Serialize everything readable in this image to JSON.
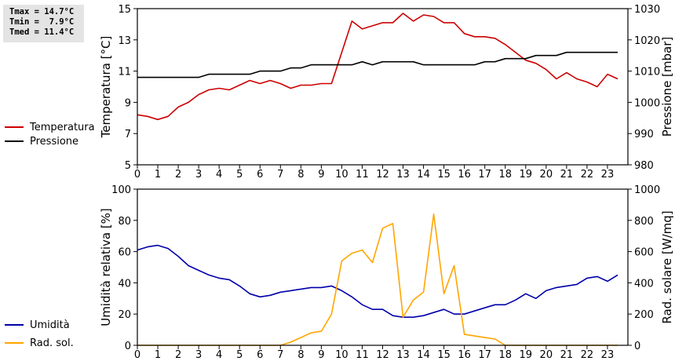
{
  "stats": {
    "tmax": "Tmax = 14.7°C",
    "tmin": "Tmin =  7.9°C",
    "tmed": "Tmed = 11.4°C"
  },
  "colors": {
    "temperature": "#cc0000",
    "pressure": "#000000",
    "humidity": "#0000aa",
    "radiation": "#ffa500"
  },
  "chart_data": [
    {
      "type": "line",
      "title": "",
      "xlabel": "",
      "ylabel": "Temperatura [°C]",
      "ylabel_right": "Pressione [mbar]",
      "xlim": [
        0,
        24
      ],
      "ylim": [
        5,
        15
      ],
      "ylim_right": [
        980,
        1030
      ],
      "xticks": [
        0,
        1,
        2,
        3,
        4,
        5,
        6,
        7,
        8,
        9,
        10,
        11,
        12,
        13,
        14,
        15,
        16,
        17,
        18,
        19,
        20,
        21,
        22,
        23
      ],
      "yticks": [
        5,
        7,
        9,
        11,
        13,
        15
      ],
      "yticks_right": [
        980,
        990,
        1000,
        1010,
        1020,
        1030
      ],
      "legend": "left",
      "series": [
        {
          "name": "Temperatura",
          "axis": "left",
          "color": "#cc0000",
          "x": [
            0,
            0.5,
            1,
            1.5,
            2,
            2.5,
            3,
            3.5,
            4,
            4.5,
            5,
            5.5,
            6,
            6.5,
            7,
            7.5,
            8,
            8.5,
            9,
            9.5,
            10,
            10.5,
            11,
            11.5,
            12,
            12.5,
            13,
            13.5,
            14,
            14.5,
            15,
            15.5,
            16,
            16.5,
            17,
            17.5,
            18,
            18.5,
            19,
            19.5,
            20,
            20.5,
            21,
            21.5,
            22,
            22.5,
            23,
            23.5
          ],
          "y": [
            8.2,
            8.1,
            7.9,
            8.1,
            8.7,
            9.0,
            9.5,
            9.8,
            9.9,
            9.8,
            10.1,
            10.4,
            10.2,
            10.4,
            10.2,
            9.9,
            10.1,
            10.1,
            10.2,
            10.2,
            12.2,
            14.2,
            13.7,
            13.9,
            14.1,
            14.1,
            14.7,
            14.2,
            14.6,
            14.5,
            14.1,
            14.1,
            13.4,
            13.2,
            13.2,
            13.1,
            12.7,
            12.2,
            11.7,
            11.5,
            11.1,
            10.5,
            10.9,
            10.5,
            10.3,
            10.0,
            10.8,
            10.5
          ]
        },
        {
          "name": "Pressione",
          "axis": "right",
          "color": "#000000",
          "x": [
            0,
            0.5,
            1,
            1.5,
            2,
            2.5,
            3,
            3.5,
            4,
            4.5,
            5,
            5.5,
            6,
            6.5,
            7,
            7.5,
            8,
            8.5,
            9,
            9.5,
            10,
            10.5,
            11,
            11.5,
            12,
            12.5,
            13,
            13.5,
            14,
            14.5,
            15,
            15.5,
            16,
            16.5,
            17,
            17.5,
            18,
            18.5,
            19,
            19.5,
            20,
            20.5,
            21,
            21.5,
            22,
            22.5,
            23,
            23.5
          ],
          "y": [
            1008,
            1008,
            1008,
            1008,
            1008,
            1008,
            1008,
            1009,
            1009,
            1009,
            1009,
            1009,
            1010,
            1010,
            1010,
            1011,
            1011,
            1012,
            1012,
            1012,
            1012,
            1012,
            1013,
            1012,
            1013,
            1013,
            1013,
            1013,
            1012,
            1012,
            1012,
            1012,
            1012,
            1012,
            1013,
            1013,
            1014,
            1014,
            1014,
            1015,
            1015,
            1015,
            1016,
            1016,
            1016,
            1016,
            1016,
            1016
          ]
        }
      ]
    },
    {
      "type": "line",
      "title": "",
      "xlabel": "",
      "ylabel": "Umidità relativa [%]",
      "ylabel_right": "Rad. solare [W/mq]",
      "xlim": [
        0,
        24
      ],
      "ylim": [
        0,
        100
      ],
      "ylim_right": [
        0,
        1000
      ],
      "xticks": [
        0,
        1,
        2,
        3,
        4,
        5,
        6,
        7,
        8,
        9,
        10,
        11,
        12,
        13,
        14,
        15,
        16,
        17,
        18,
        19,
        20,
        21,
        22,
        23
      ],
      "yticks": [
        0,
        20,
        40,
        60,
        80,
        100
      ],
      "yticks_right": [
        0,
        200,
        400,
        600,
        800,
        1000
      ],
      "legend": "left",
      "series": [
        {
          "name": "Umidità",
          "axis": "left",
          "color": "#0000aa",
          "x": [
            0,
            0.5,
            1,
            1.5,
            2,
            2.5,
            3,
            3.5,
            4,
            4.5,
            5,
            5.5,
            6,
            6.5,
            7,
            7.5,
            8,
            8.5,
            9,
            9.5,
            10,
            10.5,
            11,
            11.5,
            12,
            12.5,
            13,
            13.5,
            14,
            14.5,
            15,
            15.5,
            16,
            16.5,
            17,
            17.5,
            18,
            18.5,
            19,
            19.5,
            20,
            20.5,
            21,
            21.5,
            22,
            22.5,
            23,
            23.5
          ],
          "y": [
            61,
            63,
            64,
            62,
            57,
            51,
            48,
            45,
            43,
            42,
            38,
            33,
            31,
            32,
            34,
            35,
            36,
            37,
            37,
            38,
            35,
            31,
            26,
            23,
            23,
            19,
            18,
            18,
            19,
            21,
            23,
            20,
            20,
            22,
            24,
            26,
            26,
            29,
            33,
            30,
            35,
            37,
            38,
            39,
            43,
            44,
            41,
            45
          ]
        },
        {
          "name": "Rad. sol.",
          "axis": "right",
          "color": "#ffa500",
          "x": [
            0,
            1,
            2,
            3,
            4,
            5,
            6,
            7,
            7.5,
            8,
            8.5,
            9,
            9.5,
            10,
            10.5,
            11,
            11.5,
            12,
            12.5,
            13,
            13.5,
            14,
            14.5,
            15,
            15.5,
            16,
            16.5,
            17,
            17.5,
            18,
            19,
            20,
            21,
            22,
            23,
            23.5
          ],
          "y": [
            0,
            0,
            0,
            0,
            0,
            0,
            0,
            0,
            20,
            50,
            80,
            90,
            200,
            540,
            590,
            610,
            530,
            750,
            780,
            180,
            290,
            340,
            840,
            330,
            510,
            70,
            60,
            50,
            40,
            0,
            0,
            0,
            0,
            0,
            0,
            0
          ]
        }
      ]
    }
  ]
}
